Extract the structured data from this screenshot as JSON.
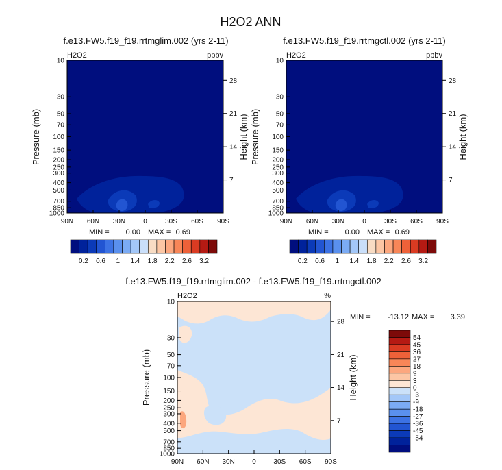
{
  "title": "H2O2 ANN",
  "colors": {
    "abs_scale": [
      "#000E7E",
      "#00229B",
      "#0B3AB8",
      "#2255D2",
      "#3C72E4",
      "#5A90EE",
      "#7BABF4",
      "#A3C7F8",
      "#CADFFA",
      "#F8DCC4",
      "#FCC6A4",
      "#FCA77E",
      "#F88658",
      "#EE6139",
      "#DA3B22",
      "#B51A13",
      "#7D0A09"
    ],
    "diff_scale": [
      "#000E7E",
      "#00229B",
      "#0B3AB8",
      "#2255D2",
      "#3C72E4",
      "#5A90EE",
      "#7BABF4",
      "#A3C7F8",
      "#CBE1F9",
      "#FDE6D5",
      "#FCC6A4",
      "#FCA77E",
      "#F88658",
      "#EE6139",
      "#DA3B22",
      "#B51A13",
      "#7D0A09"
    ]
  },
  "chart_data": [
    {
      "type": "heatmap",
      "title": "f.e13.FW5.f19_f19.rrtmglim.002 (yrs 2-11)",
      "variable": "H2O2",
      "units": "ppbv",
      "xlabel": "",
      "ylabel": "Pressure (mb)",
      "y2label": "Height (km)",
      "x_ticks": [
        "90N",
        "60N",
        "30N",
        "0",
        "30S",
        "60S",
        "90S"
      ],
      "y_ticks": [
        "10",
        "30",
        "50",
        "70",
        "100",
        "150",
        "200",
        "250",
        "300",
        "400",
        "500",
        "700",
        "850",
        "1000"
      ],
      "y2_ticks": [
        "28",
        "21",
        "14",
        "7"
      ],
      "min_label": "MIN =",
      "min": "0.00",
      "max_label": "MAX =",
      "max": "0.69",
      "colorbar_labels": [
        "0.2",
        "0.6",
        "1",
        "1.4",
        "1.8",
        "2.2",
        "2.6",
        "3.2"
      ]
    },
    {
      "type": "heatmap",
      "title": "f.e13.FW5.f19_f19.rrtmgctl.002 (yrs 2-11)",
      "variable": "H2O2",
      "units": "ppbv",
      "xlabel": "",
      "ylabel": "Pressure (mb)",
      "y2label": "Height (km)",
      "x_ticks": [
        "90N",
        "60N",
        "30N",
        "0",
        "30S",
        "60S",
        "90S"
      ],
      "y_ticks": [
        "10",
        "30",
        "50",
        "70",
        "100",
        "150",
        "200",
        "250",
        "300",
        "400",
        "500",
        "700",
        "850",
        "1000"
      ],
      "y2_ticks": [
        "28",
        "21",
        "14",
        "7"
      ],
      "min_label": "MIN =",
      "min": "0.00",
      "max_label": "MAX =",
      "max": "0.69",
      "colorbar_labels": [
        "0.2",
        "0.6",
        "1",
        "1.4",
        "1.8",
        "2.2",
        "2.6",
        "3.2"
      ]
    },
    {
      "type": "heatmap",
      "title": "f.e13.FW5.f19_f19.rrtmglim.002 - f.e13.FW5.f19_f19.rrtmgctl.002",
      "variable": "H2O2",
      "units": "%",
      "xlabel": "",
      "ylabel": "Pressure (mb)",
      "y2label": "Height (km)",
      "x_ticks": [
        "90N",
        "60N",
        "30N",
        "0",
        "30S",
        "60S",
        "90S"
      ],
      "y_ticks": [
        "10",
        "30",
        "50",
        "70",
        "100",
        "150",
        "200",
        "250",
        "300",
        "400",
        "500",
        "700",
        "850",
        "1000"
      ],
      "y2_ticks": [
        "28",
        "21",
        "14",
        "7"
      ],
      "min_label": "MIN =",
      "min": "-13.12",
      "max_label": "MAX =",
      "max": "3.39",
      "colorbar_labels": [
        "54",
        "45",
        "36",
        "27",
        "18",
        "9",
        "3",
        "0",
        "-3",
        "-9",
        "-18",
        "-27",
        "-36",
        "-45",
        "-54"
      ]
    }
  ]
}
